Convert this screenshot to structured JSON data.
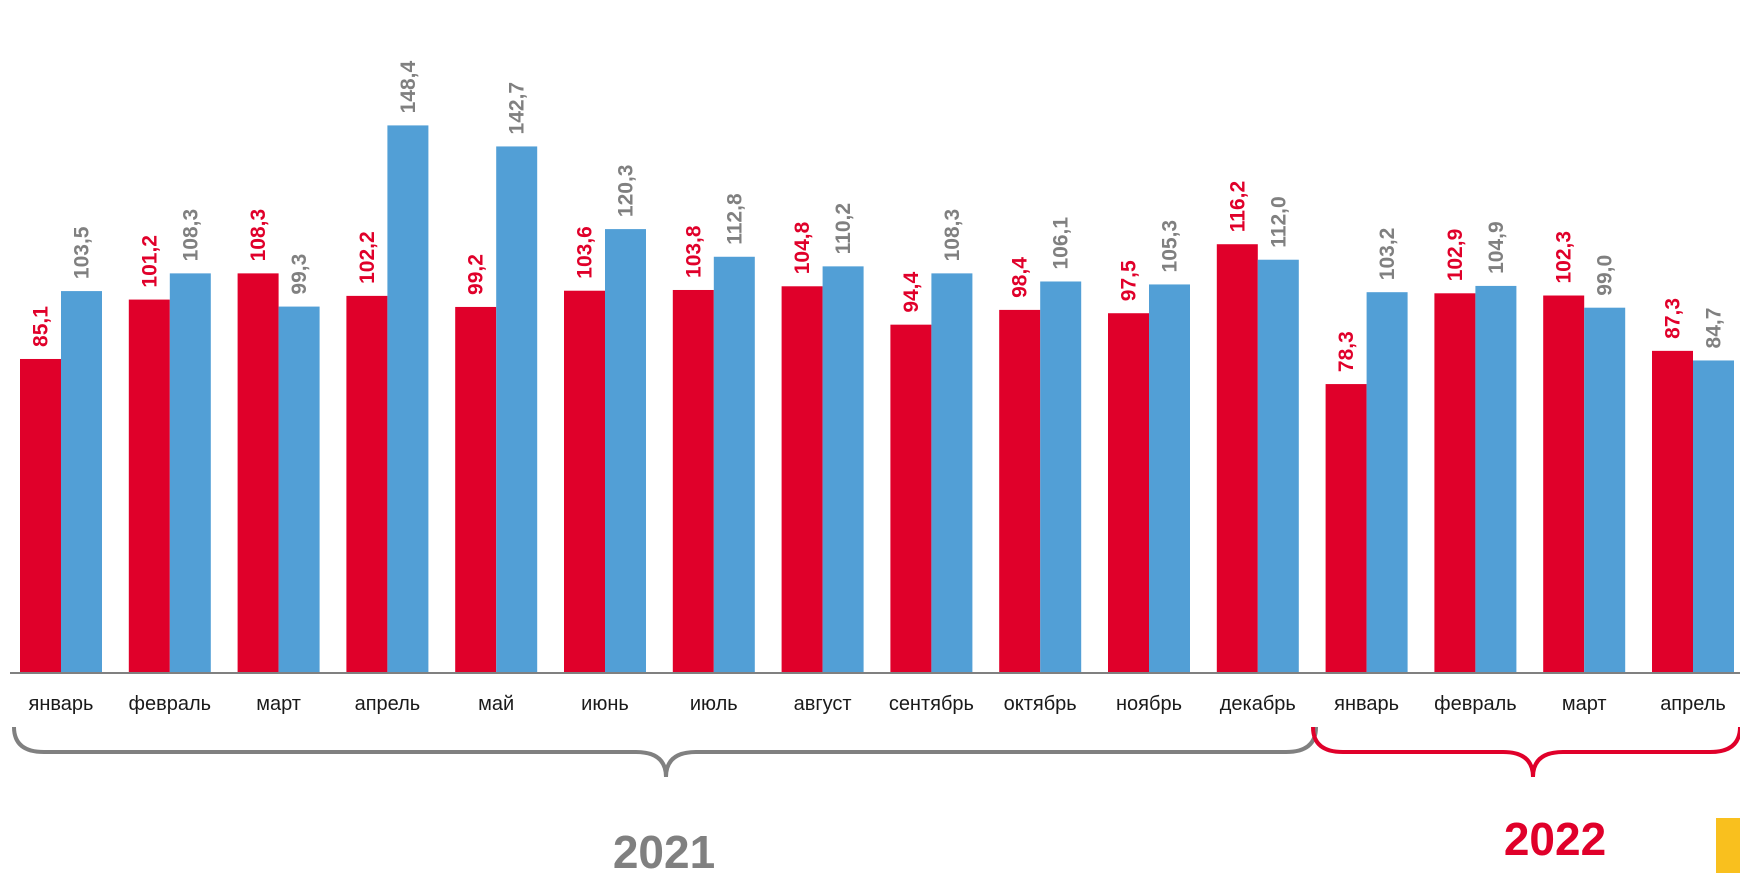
{
  "colors": {
    "series_a": "#E0002A",
    "series_b": "#529FD6",
    "label_a": "#E0002A",
    "label_b": "#808080",
    "axis": "#808080",
    "brace_2021": "#808080",
    "brace_2022": "#E0002A",
    "accent": "#F9C01E"
  },
  "chart_data": {
    "type": "bar",
    "categories": [
      "январь",
      "февраль",
      "март",
      "апрель",
      "май",
      "июнь",
      "июль",
      "август",
      "сентябрь",
      "октябрь",
      "ноябрь",
      "декабрь",
      "январь",
      "февраль",
      "март",
      "апрель"
    ],
    "series": [
      {
        "values": [
          85.1,
          101.2,
          108.3,
          102.2,
          99.2,
          103.6,
          103.8,
          104.8,
          94.4,
          98.4,
          97.5,
          116.2,
          78.3,
          102.9,
          102.3,
          87.3
        ],
        "labels": [
          "85,1",
          "101,2",
          "108,3",
          "102,2",
          "99,2",
          "103,6",
          "103,8",
          "104,8",
          "94,4",
          "98,4",
          "97,5",
          "116,2",
          "78,3",
          "102,9",
          "102,3",
          "87,3"
        ]
      },
      {
        "values": [
          103.5,
          108.3,
          99.3,
          148.4,
          142.7,
          120.3,
          112.8,
          110.2,
          108.3,
          106.1,
          105.3,
          112.0,
          103.2,
          104.9,
          99.0,
          84.7
        ],
        "labels": [
          "103,5",
          "108,3",
          "99,3",
          "148,4",
          "142,7",
          "120,3",
          "112,8",
          "110,2",
          "108,3",
          "106,1",
          "105,3",
          "112,0",
          "103,2",
          "104,9",
          "99,0",
          "84,7"
        ]
      }
    ],
    "ylim": [
      0,
      165
    ],
    "grid": false,
    "legend": "none",
    "groups": [
      {
        "label": "2021",
        "from": 0,
        "to": 11
      },
      {
        "label": "2022",
        "from": 12,
        "to": 15
      }
    ]
  }
}
